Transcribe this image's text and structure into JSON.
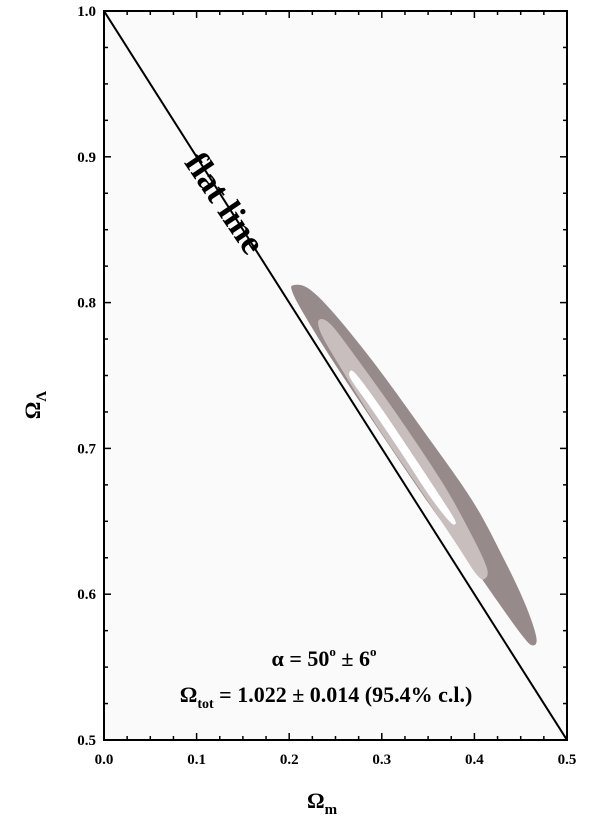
{
  "chart_data": {
    "type": "contour",
    "xlabel": "Ω",
    "xlabel_sub": "m",
    "ylabel": "Ω",
    "ylabel_sub": "Λ",
    "xlim": [
      0.0,
      0.5
    ],
    "ylim": [
      0.5,
      1.0
    ],
    "x_ticks": [
      "0.0",
      "0.1",
      "0.2",
      "0.3",
      "0.4",
      "0.5"
    ],
    "y_ticks": [
      "0.5",
      "0.6",
      "0.7",
      "0.8",
      "0.9",
      "1.0"
    ],
    "grid": false,
    "flat_line": {
      "label": "flat line",
      "points": [
        [
          0.0,
          1.0
        ],
        [
          0.5,
          0.5
        ]
      ]
    },
    "contours": [
      {
        "level": "outer",
        "color": "#968a8a",
        "points": [
          [
            0.205,
            0.812
          ],
          [
            0.22,
            0.81
          ],
          [
            0.245,
            0.795
          ],
          [
            0.29,
            0.76
          ],
          [
            0.345,
            0.712
          ],
          [
            0.398,
            0.664
          ],
          [
            0.432,
            0.624
          ],
          [
            0.455,
            0.593
          ],
          [
            0.467,
            0.57
          ],
          [
            0.462,
            0.565
          ],
          [
            0.45,
            0.573
          ],
          [
            0.425,
            0.595
          ],
          [
            0.39,
            0.627
          ],
          [
            0.34,
            0.672
          ],
          [
            0.29,
            0.719
          ],
          [
            0.245,
            0.762
          ],
          [
            0.215,
            0.793
          ],
          [
            0.203,
            0.808
          ]
        ]
      },
      {
        "level": "middle",
        "color": "#c8bebe",
        "points": [
          [
            0.232,
            0.788
          ],
          [
            0.245,
            0.785
          ],
          [
            0.275,
            0.76
          ],
          [
            0.32,
            0.72
          ],
          [
            0.365,
            0.677
          ],
          [
            0.395,
            0.643
          ],
          [
            0.413,
            0.619
          ],
          [
            0.412,
            0.611
          ],
          [
            0.403,
            0.613
          ],
          [
            0.38,
            0.635
          ],
          [
            0.34,
            0.673
          ],
          [
            0.295,
            0.715
          ],
          [
            0.255,
            0.756
          ],
          [
            0.235,
            0.778
          ]
        ]
      },
      {
        "level": "inner",
        "color": "#ffffff",
        "points": [
          [
            0.265,
            0.752
          ],
          [
            0.272,
            0.751
          ],
          [
            0.3,
            0.727
          ],
          [
            0.335,
            0.694
          ],
          [
            0.36,
            0.67
          ],
          [
            0.378,
            0.652
          ],
          [
            0.379,
            0.648
          ],
          [
            0.373,
            0.65
          ],
          [
            0.352,
            0.667
          ],
          [
            0.32,
            0.698
          ],
          [
            0.288,
            0.728
          ],
          [
            0.268,
            0.746
          ]
        ]
      }
    ],
    "annotations": [
      {
        "alpha_text": "α = 50",
        "alpha_deg1": "o",
        "alpha_pm": " ± 6",
        "alpha_deg2": "o"
      },
      {
        "omega_text": "Ω",
        "omega_sub": "tot",
        "omega_value": " = 1.022 ± 0.014 (95.4% c.l.)"
      }
    ]
  }
}
